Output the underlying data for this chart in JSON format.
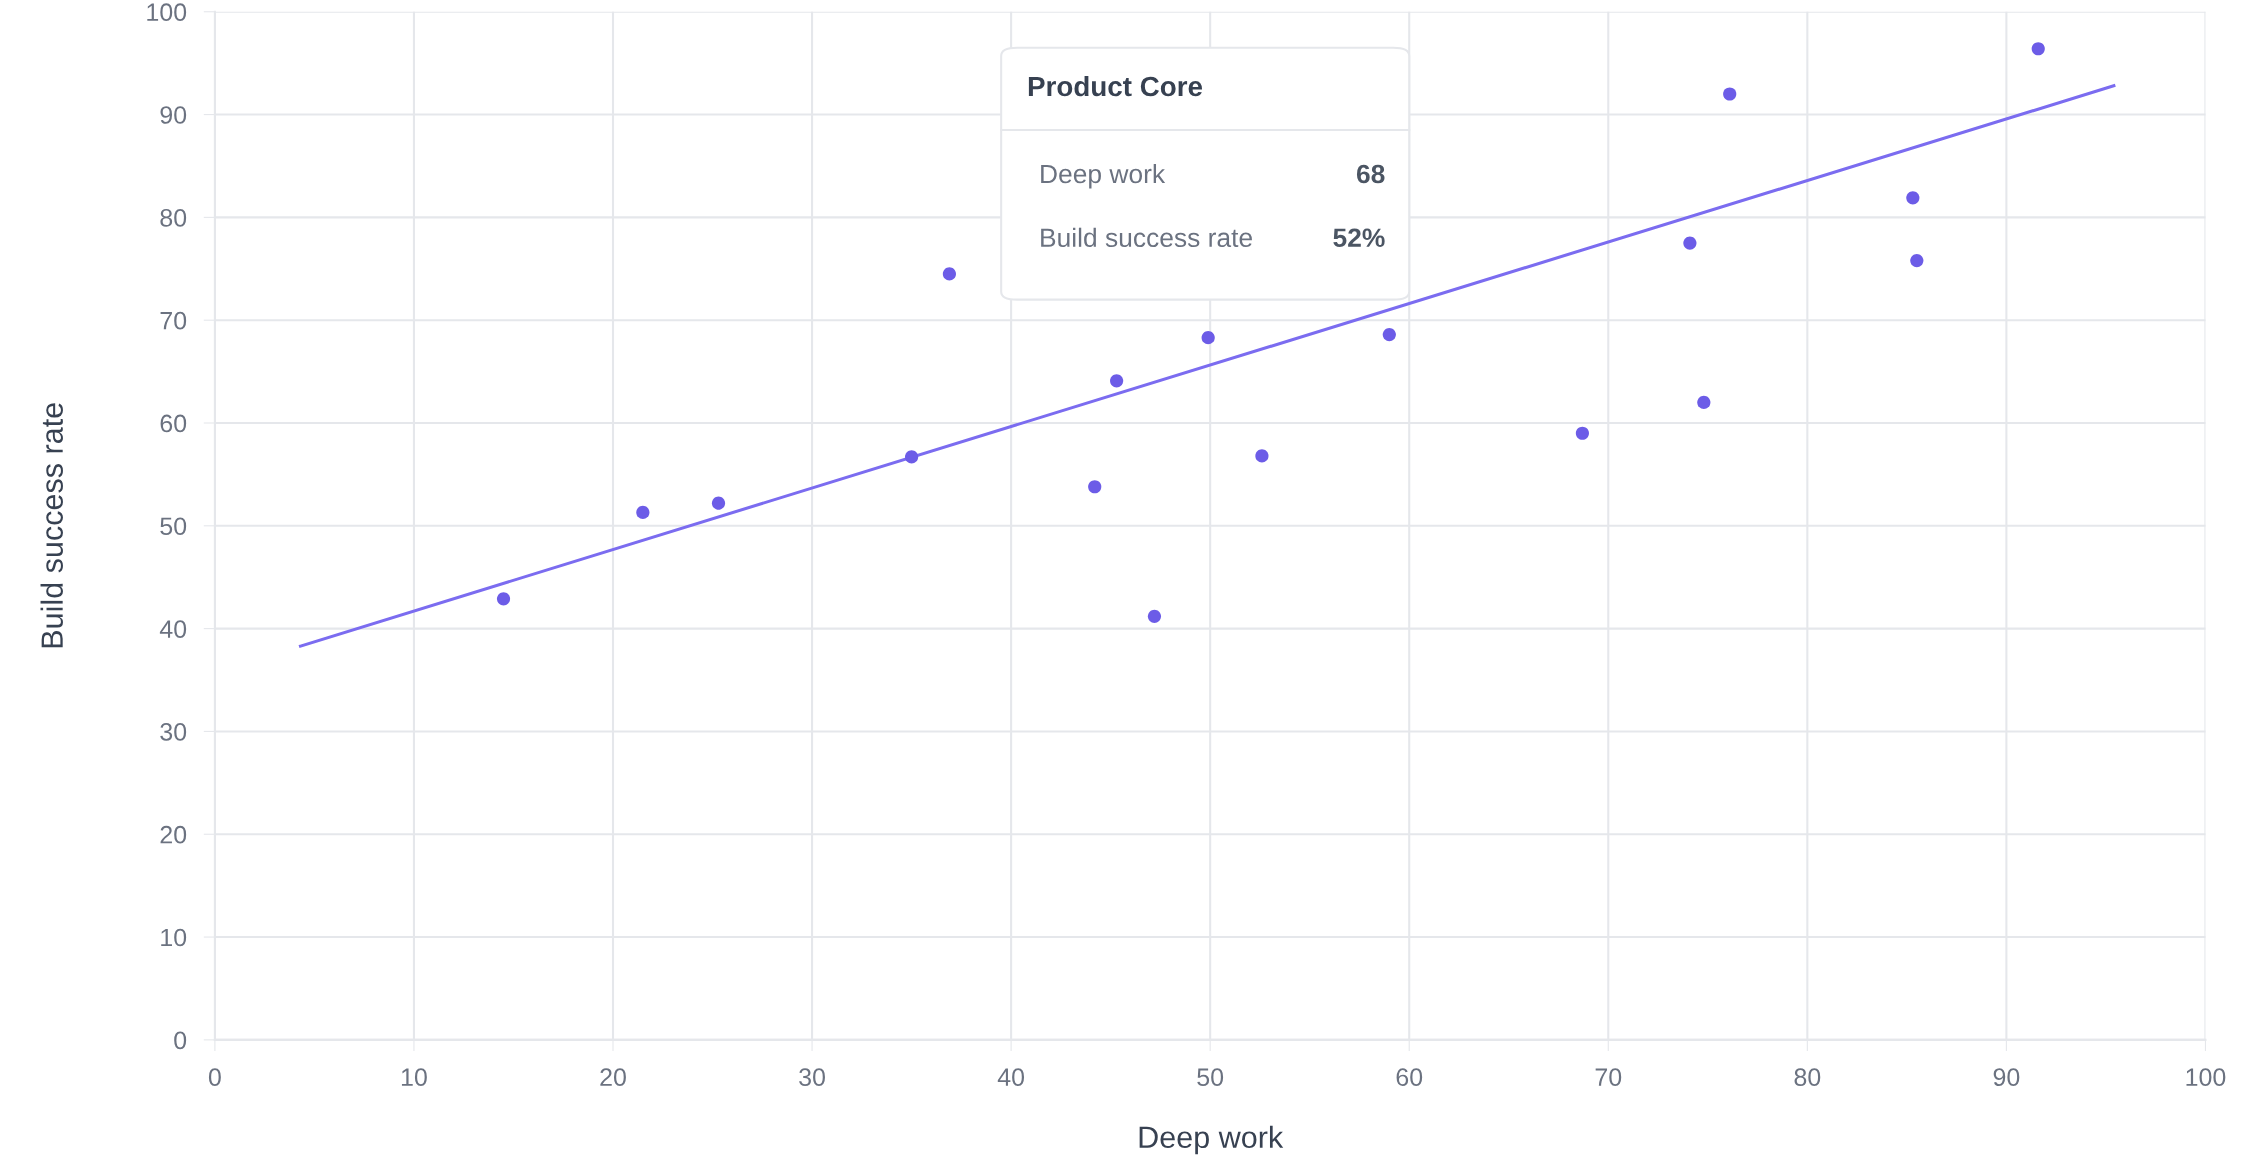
{
  "chart_data": {
    "type": "scatter",
    "xlabel": "Deep work",
    "ylabel": "Build success rate",
    "xlim": [
      0,
      100
    ],
    "xticks": [
      0,
      10,
      20,
      30,
      40,
      50,
      60,
      70,
      80,
      90,
      100
    ],
    "ylim": [
      0,
      100
    ],
    "yticks": [
      0,
      10,
      20,
      30,
      40,
      50,
      60,
      70,
      80,
      90,
      100
    ],
    "grid": true,
    "marker": "circle",
    "series": [
      {
        "color": "#6c5ce7",
        "x": [
          14.5,
          21.5,
          25.3,
          35.0,
          36.9,
          44.2,
          45.3,
          47.2,
          49.9,
          52.6,
          59.0,
          68.7,
          74.1,
          74.8,
          76.1,
          85.3,
          85.5,
          91.6
        ],
        "values": [
          42.9,
          51.3,
          52.2,
          56.7,
          74.5,
          53.8,
          64.1,
          41.2,
          68.3,
          56.8,
          68.6,
          59.0,
          77.5,
          62.0,
          92.0,
          81.9,
          75.8,
          96.4
        ]
      },
      {
        "type": "line",
        "color": "#7b6cf0",
        "line_style": "solid",
        "marker": "none",
        "x": [
          4.3,
          95.4
        ],
        "values": [
          38.3,
          92.8
        ]
      }
    ],
    "annotations": [
      "Product Core",
      "Deep work",
      "68",
      "Build success rate",
      "52%"
    ]
  }
}
